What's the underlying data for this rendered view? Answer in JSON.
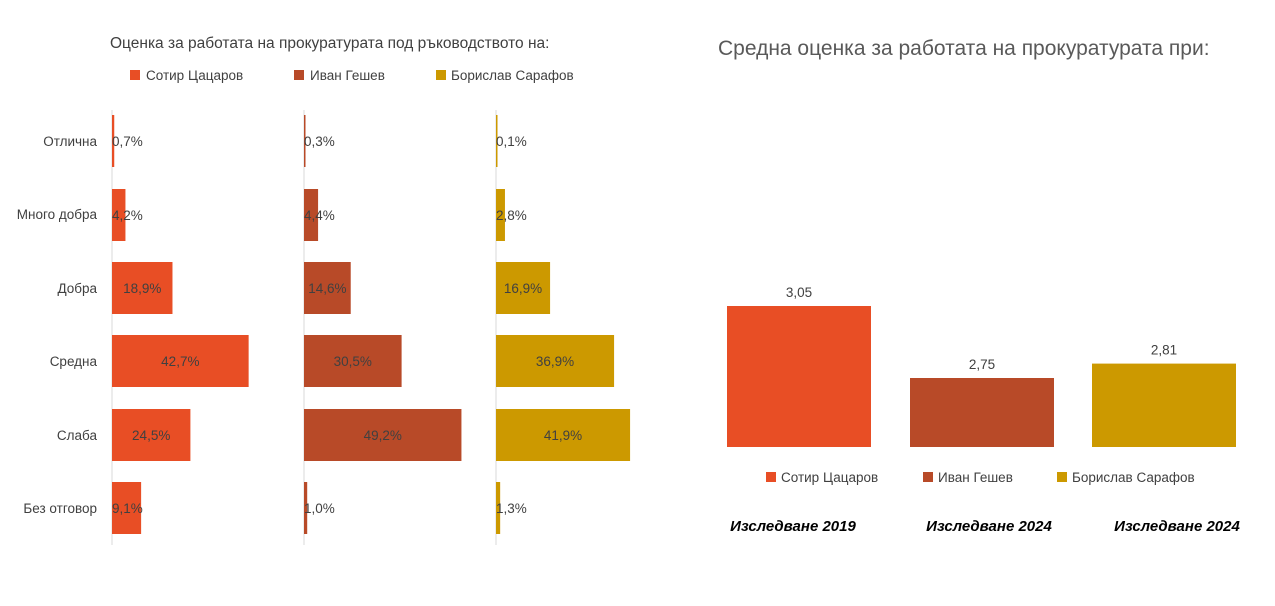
{
  "colors": {
    "tsatsarov": "#E84E25",
    "geshev": "#B84A28",
    "sarafov": "#CC9900",
    "text": "#404040",
    "axis": "#d9d9d9"
  },
  "chart_data": [
    {
      "type": "bar",
      "orientation": "horizontal",
      "title": "Оценка за работата на прокуратурата под ръководството на:",
      "categories": [
        "Отлична",
        "Много добра",
        "Добра",
        "Средна",
        "Слаба",
        "Без отговор"
      ],
      "series": [
        {
          "name": "Сотир Цацаров",
          "color": "#E84E25",
          "values": [
            0.7,
            4.2,
            18.9,
            42.7,
            24.5,
            9.1
          ],
          "labels": [
            "0,7%",
            "4,2%",
            "18,9%",
            "42,7%",
            "24,5%",
            "9,1%"
          ]
        },
        {
          "name": "Иван Гешев",
          "color": "#B84A28",
          "values": [
            0.3,
            4.4,
            14.6,
            30.5,
            49.2,
            1.0
          ],
          "labels": [
            "0,3%",
            "4,4%",
            "14,6%",
            "30,5%",
            "49,2%",
            "1,0%"
          ]
        },
        {
          "name": "Борислав Сарафов",
          "color": "#CC9900",
          "values": [
            0.1,
            2.8,
            16.9,
            36.9,
            41.9,
            1.3
          ],
          "labels": [
            "0,1%",
            "2,8%",
            "16,9%",
            "36,9%",
            "41,9%",
            "1,3%"
          ]
        }
      ],
      "legend_position": "top",
      "grid": false
    },
    {
      "type": "bar",
      "orientation": "vertical",
      "title": "Средна оценка за работата на прокуратурата при:",
      "categories": [
        "Сотир Цацаров",
        "Иван Гешев",
        "Борислав Сарафов"
      ],
      "values": [
        3.05,
        2.75,
        2.81
      ],
      "labels": [
        "3,05",
        "2,75",
        "2,81"
      ],
      "colors": [
        "#E84E25",
        "#B84A28",
        "#CC9900"
      ],
      "subtitles": [
        "Изследване 2019",
        "Изследване 2024",
        "Изследване 2024"
      ],
      "legend_position": "bottom",
      "grid": false
    }
  ]
}
